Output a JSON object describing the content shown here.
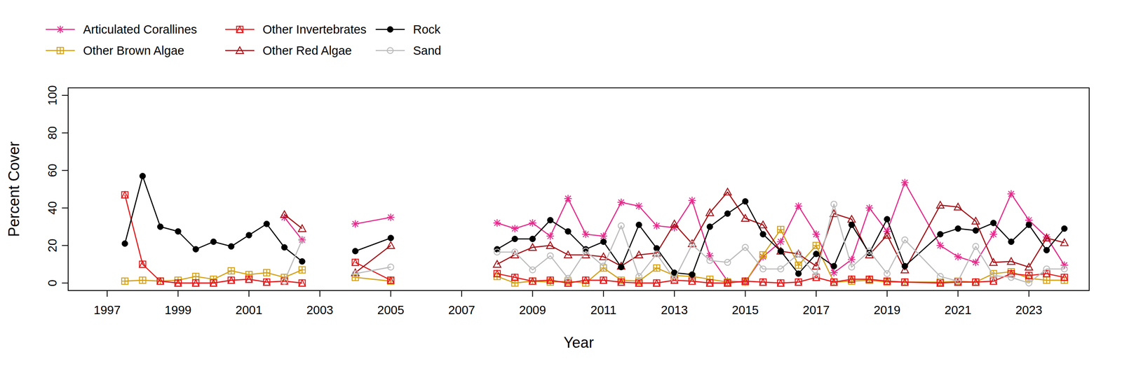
{
  "chart_data": {
    "type": "line",
    "x_label": "Year",
    "y_label": "Percent Cover",
    "x": [
      1997.5,
      1998,
      1998.5,
      1999,
      1999.5,
      2000,
      2000.5,
      2001,
      2001.5,
      2002,
      2002.5,
      2003,
      2004,
      2005,
      2006.5,
      2008,
      2008.5,
      2009,
      2009.5,
      2010,
      2010.5,
      2011,
      2011.5,
      2012,
      2012.5,
      2013,
      2013.5,
      2014,
      2014.5,
      2015,
      2015.5,
      2016,
      2016.5,
      2017,
      2017.5,
      2018,
      2018.5,
      2019,
      2019.5,
      2020.5,
      2021,
      2021.5,
      2022,
      2022.5,
      2023,
      2023.5,
      2024
    ],
    "series": [
      {
        "name": "Articulated Corallines",
        "color": "#e7298a",
        "marker": "asterisk",
        "values": [
          null,
          null,
          null,
          null,
          null,
          null,
          null,
          null,
          null,
          35,
          23,
          null,
          31.5,
          35,
          null,
          32,
          29,
          32,
          25,
          45,
          26,
          25,
          43,
          41,
          30.5,
          29.5,
          44,
          14.5,
          1,
          0.5,
          14,
          22,
          41,
          26,
          5.5,
          12.5,
          40,
          27.5,
          53.5,
          20,
          14,
          11,
          26,
          47.5,
          33.5,
          24.5,
          9.5
        ]
      },
      {
        "name": "Other Brown Algae",
        "color": "#d4a017",
        "marker": "square-plus",
        "values": [
          1,
          1.5,
          1,
          1.5,
          3.5,
          2,
          6.5,
          4.5,
          5.5,
          3,
          7,
          null,
          3,
          1,
          null,
          3.5,
          0,
          1,
          0.5,
          1,
          0,
          8,
          1.5,
          1,
          8,
          4,
          3.5,
          2,
          0.5,
          0.5,
          15,
          28.5,
          9.5,
          20,
          0.5,
          1,
          1.5,
          0.5,
          0.5,
          0.5,
          1,
          0.5,
          5,
          6,
          2.5,
          1.5,
          1.5
        ]
      },
      {
        "name": "Other Invertebrates",
        "color": "#e31a1c",
        "marker": "square-triangle",
        "values": [
          47,
          10,
          1,
          0,
          0,
          0,
          1.5,
          2,
          0.5,
          1,
          0,
          null,
          11,
          1.5,
          null,
          5,
          3,
          1,
          1.5,
          0,
          1.5,
          1.5,
          0.5,
          0,
          0,
          1.5,
          1,
          0,
          0,
          1,
          0.5,
          0,
          0.5,
          3,
          0.5,
          2,
          2,
          1,
          0.5,
          0,
          0.5,
          0.5,
          1,
          5,
          4,
          5,
          3
        ]
      },
      {
        "name": "Other Red Algae",
        "color": "#a50f15",
        "marker": "triangle",
        "values": [
          null,
          null,
          null,
          null,
          null,
          null,
          null,
          null,
          null,
          36.5,
          29,
          null,
          5.5,
          20,
          null,
          10,
          15,
          19,
          20,
          15,
          15,
          14,
          9,
          15,
          16,
          31.5,
          21,
          37.5,
          48.5,
          34.5,
          31,
          17,
          15.5,
          9,
          37,
          34,
          15,
          25.5,
          7,
          41.5,
          40.5,
          33,
          11,
          11.5,
          8.5,
          24,
          21.5
        ]
      },
      {
        "name": "Rock",
        "color": "#000000",
        "marker": "circle-filled",
        "values": [
          21,
          57,
          30,
          27.5,
          18,
          22,
          19.5,
          25.5,
          31.5,
          19,
          11.5,
          null,
          17,
          24,
          null,
          18,
          23.5,
          23.5,
          33.5,
          27.5,
          18,
          22,
          8.5,
          31,
          18.5,
          5.5,
          4.5,
          30,
          37,
          43.5,
          26,
          17,
          5,
          15.5,
          9,
          31,
          16,
          34,
          9,
          26,
          29,
          28,
          32,
          22,
          31,
          17.5,
          29
        ]
      },
      {
        "name": "Sand",
        "color": "#bbbbbb",
        "marker": "circle",
        "values": [
          null,
          null,
          null,
          null,
          null,
          null,
          null,
          null,
          null,
          1,
          23,
          null,
          5,
          8.5,
          null,
          16.5,
          16.5,
          7,
          14.5,
          2.5,
          17,
          9,
          30.5,
          3.5,
          15.5,
          2,
          20.5,
          12,
          11,
          19,
          7.5,
          7.5,
          15.5,
          4,
          42,
          8.5,
          17,
          5,
          23,
          3.5,
          1,
          19.5,
          4,
          3,
          0,
          7.5,
          7.5
        ]
      }
    ],
    "xlim": [
      1995.9,
      2024.7
    ],
    "xticks": [
      1997,
      1999,
      2001,
      2003,
      2005,
      2007,
      2009,
      2011,
      2013,
      2015,
      2017,
      2019,
      2021,
      2023
    ],
    "ylim": [
      -4,
      104
    ],
    "yticks": [
      0,
      20,
      40,
      60,
      80,
      100
    ],
    "legend": "top-left",
    "grid": false
  }
}
